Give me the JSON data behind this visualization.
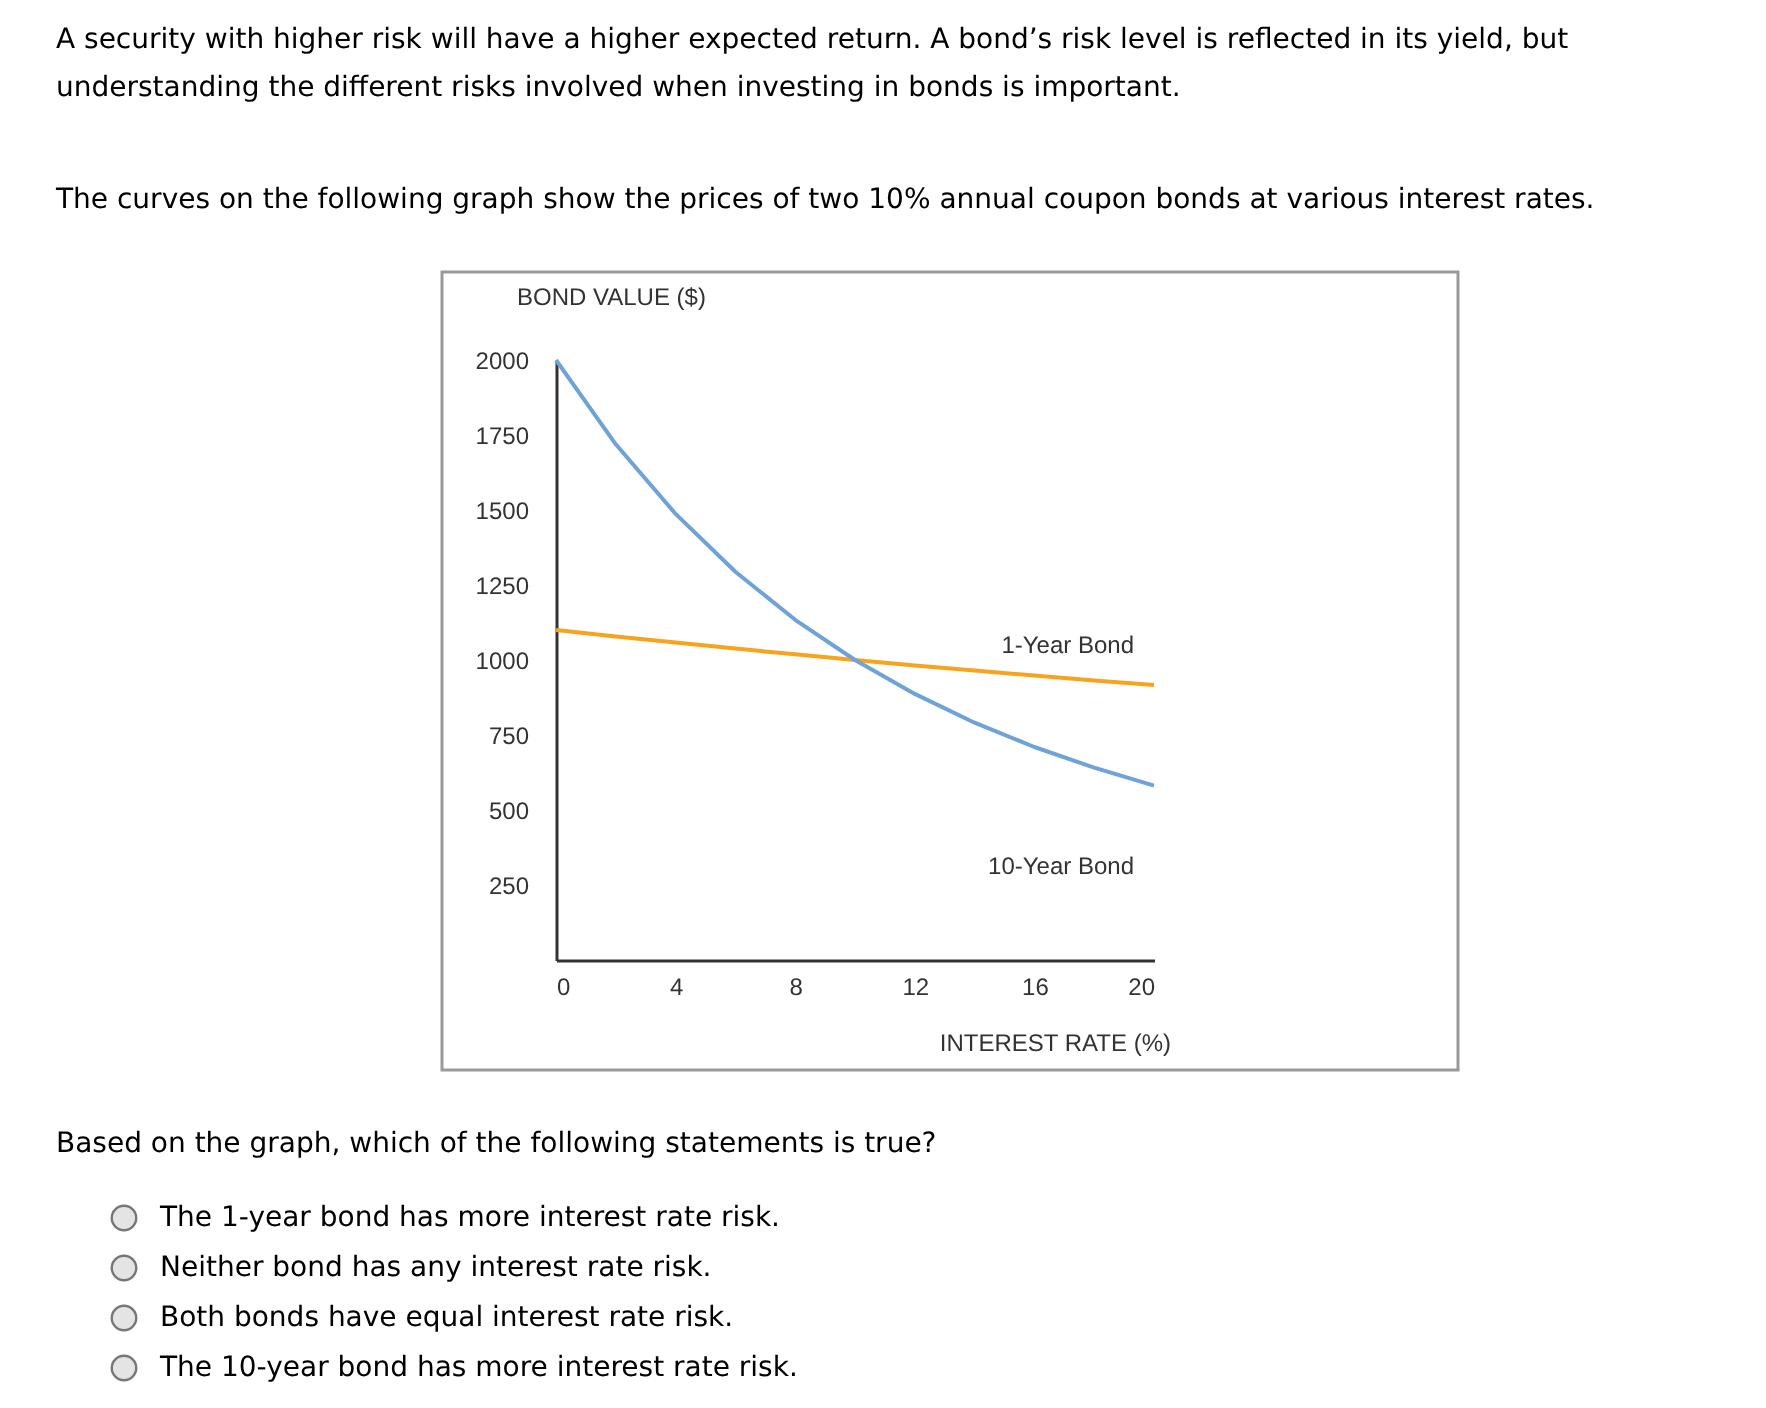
{
  "chart_data": {
    "type": "line",
    "xlabel": "INTEREST RATE (%)",
    "ylabel": "BOND VALUE ($)",
    "series": [
      {
        "name": "1-Year Bond",
        "color": "#f7a31c",
        "x": [
          0,
          2,
          4,
          6,
          8,
          10,
          12,
          14,
          16,
          18,
          20
        ],
        "values": [
          1100,
          1078,
          1058,
          1038,
          1019,
          1000,
          982,
          965,
          948,
          932,
          917
        ]
      },
      {
        "name": "10-Year Bond",
        "color": "#6fa3d8",
        "x": [
          0,
          2,
          4,
          6,
          8,
          10,
          12,
          14,
          16,
          18,
          20
        ],
        "values": [
          2000,
          1719,
          1487,
          1294,
          1134,
          1000,
          887,
          791,
          710,
          641,
          581
        ]
      }
    ],
    "xlim": [
      0,
      20
    ],
    "xticks": [
      0,
      4,
      8,
      12,
      16,
      20
    ],
    "ylim": [
      0,
      2000
    ],
    "yticks": [
      250,
      500,
      750,
      {
        "value": 1000,
        "label": "1000"
      },
      {
        "value": 1250,
        "label": "1250"
      },
      {
        "value": 1500,
        "label": "1500"
      },
      {
        "value": 1750,
        "label": "1750"
      },
      {
        "value": 2000,
        "label": "2000"
      }
    ],
    "grid": false,
    "legend": false,
    "marker": "none",
    "line_style": "solid",
    "annotations": [
      "A security with higher risk will have a higher expected return. A bond’s risk level is reflected in its yield, but understanding the different risks involved when investing in bonds is important.",
      "The curves on the following graph show the prices of two 10% annual coupon bonds at various interest rates.",
      "Based on the graph, which of the following statements is true?",
      "The 1-year bond has more interest rate risk.",
      "Neither bond has any interest rate risk.",
      "Both bonds have equal interest rate risk.",
      "The 10-year bond has more interest rate risk."
    ]
  }
}
